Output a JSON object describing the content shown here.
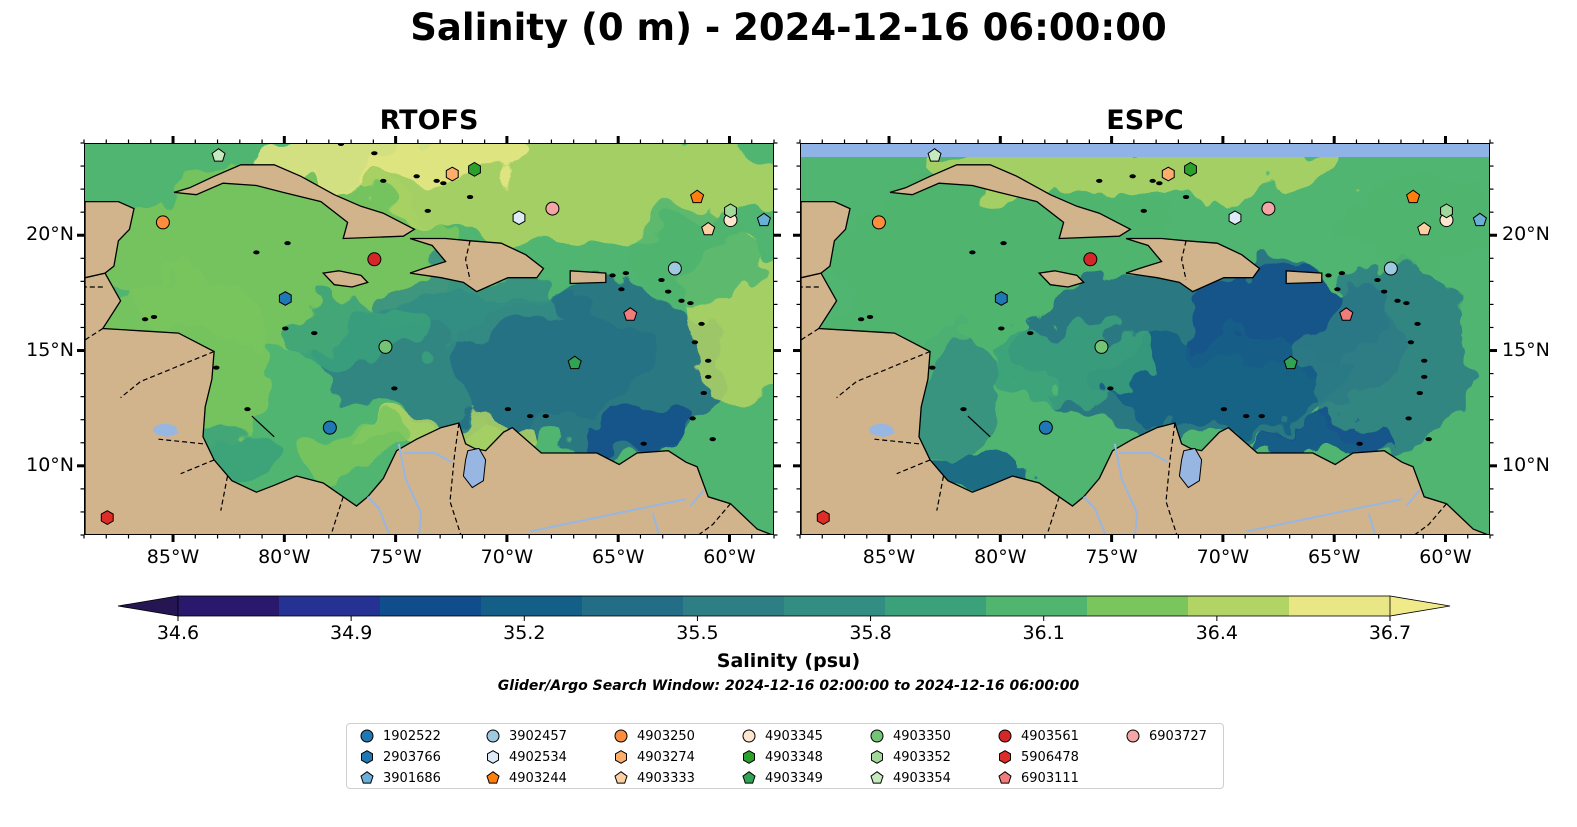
{
  "title": "Salinity (0 m) - 2024-12-16 06:00:00",
  "panels": [
    {
      "title": "RTOFS",
      "variant": "rtofs"
    },
    {
      "title": "ESPC",
      "variant": "espc"
    }
  ],
  "map_extent": {
    "lon_min": -89.0,
    "lon_max": -58.0,
    "lat_min": 7.0,
    "lat_max": 24.0
  },
  "axes": {
    "lon_ticks": [
      "85°W",
      "80°W",
      "75°W",
      "70°W",
      "65°W",
      "60°W"
    ],
    "lon_values": [
      -85,
      -80,
      -75,
      -70,
      -65,
      -60
    ],
    "lat_ticks": [
      "20°N",
      "15°N",
      "10°N"
    ],
    "lat_values": [
      20,
      15,
      10
    ]
  },
  "colorbar": {
    "label": "Salinity (psu)",
    "min": 34.6,
    "max": 36.7,
    "extend": "both",
    "tick_labels": [
      "34.6",
      "34.9",
      "35.2",
      "35.5",
      "35.8",
      "36.1",
      "36.4",
      "36.7"
    ],
    "tick_values": [
      34.6,
      34.9,
      35.2,
      35.5,
      35.8,
      36.1,
      36.4,
      36.7
    ],
    "colormap": "haline",
    "colors": [
      "#2a186c",
      "#253294",
      "#0f4d8c",
      "#145f87",
      "#236e86",
      "#2e7e85",
      "#328e82",
      "#3aa17b",
      "#50b56f",
      "#7ac65d",
      "#b2d464",
      "#e9e785"
    ]
  },
  "search_window": "Glider/Argo Search Window: 2024-12-16 02:00:00 to 2024-12-16 06:00:00",
  "colors": {
    "land": "#d2b48c",
    "lakes_rivers": "#97b6e1",
    "espc_nodata_band": "#8fb3e6"
  },
  "floats": [
    {
      "id": "1902522",
      "marker": "circle",
      "color": "#1f77b4",
      "lon": -78.0,
      "lat": 11.7
    },
    {
      "id": "2903766",
      "marker": "hexagon",
      "color": "#1f77b4",
      "lon": -80.0,
      "lat": 17.3
    },
    {
      "id": "3901686",
      "marker": "pentagon",
      "color": "#6baed6",
      "lon": -58.5,
      "lat": 20.7
    },
    {
      "id": "3902457",
      "marker": "circle",
      "color": "#9ecae1",
      "lon": -62.5,
      "lat": 18.6
    },
    {
      "id": "4902534",
      "marker": "hexagon",
      "color": "#deebf7",
      "lon": -69.5,
      "lat": 20.8
    },
    {
      "id": "4903244",
      "marker": "pentagon",
      "color": "#ff7f0e",
      "lon": -61.5,
      "lat": 21.7
    },
    {
      "id": "4903250",
      "marker": "circle",
      "color": "#fd8d3c",
      "lon": -85.5,
      "lat": 20.6
    },
    {
      "id": "4903274",
      "marker": "hexagon",
      "color": "#fdae6b",
      "lon": -72.5,
      "lat": 22.7
    },
    {
      "id": "4903333",
      "marker": "pentagon",
      "color": "#fdd0a2",
      "lon": -61.0,
      "lat": 20.3
    },
    {
      "id": "4903345",
      "marker": "circle",
      "color": "#fee6ce",
      "lon": -60.0,
      "lat": 20.7
    },
    {
      "id": "4903348",
      "marker": "hexagon",
      "color": "#2ca02c",
      "lon": -71.5,
      "lat": 22.9
    },
    {
      "id": "4903349",
      "marker": "pentagon",
      "color": "#31a354",
      "lon": -67.0,
      "lat": 14.5
    },
    {
      "id": "4903350",
      "marker": "circle",
      "color": "#74c476",
      "lon": -75.5,
      "lat": 15.2
    },
    {
      "id": "4903352",
      "marker": "hexagon",
      "color": "#a1d99b",
      "lon": -60.0,
      "lat": 21.1
    },
    {
      "id": "4903354",
      "marker": "pentagon",
      "color": "#c7e9c0",
      "lon": -83.0,
      "lat": 23.5
    },
    {
      "id": "4903561",
      "marker": "circle",
      "color": "#d62728",
      "lon": -76.0,
      "lat": 19.0
    },
    {
      "id": "5906478",
      "marker": "hexagon",
      "color": "#de2d26",
      "lon": -88.0,
      "lat": 7.8
    },
    {
      "id": "6903111",
      "marker": "pentagon",
      "color": "#f07c7c",
      "lon": -64.5,
      "lat": 16.6
    },
    {
      "id": "6903727",
      "marker": "circle",
      "color": "#f4a6a6",
      "lon": -68.0,
      "lat": 21.2
    }
  ]
}
